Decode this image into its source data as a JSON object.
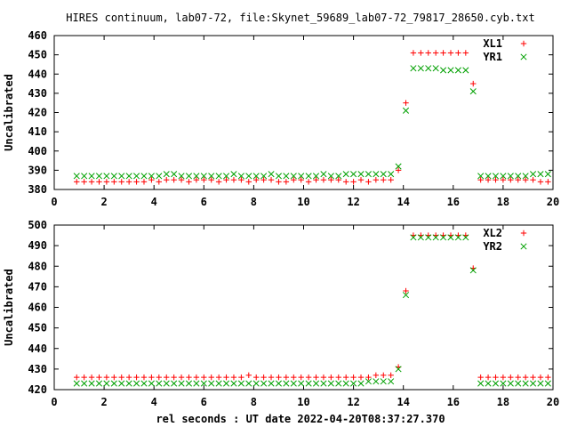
{
  "title": "HIRES continuum, lab07-72, file:Skynet_59689_lab07-72_79817_28650.cyb.txt",
  "xlabel": "rel seconds : UT date 2022-04-20T08:37:27.370",
  "colors": {
    "red": "#ff0000",
    "green": "#00a000",
    "frame": "#000000"
  },
  "chart_data": [
    {
      "type": "scatter",
      "ylabel": "Uncalibrated",
      "xlim": [
        0,
        20
      ],
      "ylim": [
        380,
        460
      ],
      "xticks": [
        "0",
        "2",
        "4",
        "6",
        "8",
        "10",
        "12",
        "14",
        "16",
        "18",
        "20"
      ],
      "yticks": [
        "380",
        "390",
        "400",
        "410",
        "420",
        "430",
        "440",
        "450",
        "460"
      ],
      "legend_position": "top-right",
      "x": [
        0.9,
        1.2,
        1.5,
        1.8,
        2.1,
        2.4,
        2.7,
        3.0,
        3.3,
        3.6,
        3.9,
        4.2,
        4.5,
        4.8,
        5.1,
        5.4,
        5.7,
        6.0,
        6.3,
        6.6,
        6.9,
        7.2,
        7.5,
        7.8,
        8.1,
        8.4,
        8.7,
        9.0,
        9.3,
        9.6,
        9.9,
        10.2,
        10.5,
        10.8,
        11.1,
        11.4,
        11.7,
        12.0,
        12.3,
        12.6,
        12.9,
        13.2,
        13.5,
        13.8,
        14.1,
        14.4,
        14.7,
        15.0,
        15.3,
        15.6,
        15.9,
        16.2,
        16.5,
        16.8,
        17.1,
        17.4,
        17.7,
        18.0,
        18.3,
        18.6,
        18.9,
        19.2,
        19.5,
        19.8
      ],
      "series": [
        {
          "name": "XL1",
          "marker": "plus",
          "color": "#ff0000",
          "values": [
            384,
            384,
            384,
            384,
            384,
            384,
            384,
            384,
            384,
            384,
            385,
            384,
            385,
            385,
            385,
            384,
            385,
            385,
            385,
            384,
            385,
            385,
            385,
            384,
            385,
            385,
            385,
            384,
            384,
            385,
            385,
            384,
            385,
            385,
            385,
            385,
            384,
            384,
            385,
            384,
            385,
            385,
            385,
            390,
            425,
            451,
            451,
            451,
            451,
            451,
            451,
            451,
            451,
            435,
            385,
            385,
            385,
            385,
            385,
            385,
            385,
            385,
            384,
            384
          ]
        },
        {
          "name": "YR1",
          "marker": "cross",
          "color": "#00a000",
          "values": [
            387,
            387,
            387,
            387,
            387,
            387,
            387,
            387,
            387,
            387,
            387,
            387,
            388,
            388,
            387,
            387,
            387,
            387,
            387,
            387,
            387,
            388,
            387,
            387,
            387,
            387,
            388,
            387,
            387,
            387,
            387,
            387,
            387,
            388,
            387,
            387,
            388,
            388,
            388,
            388,
            388,
            388,
            388,
            392,
            421,
            443,
            443,
            443,
            443,
            442,
            442,
            442,
            442,
            431,
            387,
            387,
            387,
            387,
            387,
            387,
            387,
            388,
            388,
            388
          ]
        }
      ]
    },
    {
      "type": "scatter",
      "ylabel": "Uncalibrated",
      "xlim": [
        0,
        20
      ],
      "ylim": [
        420,
        500
      ],
      "xticks": [
        "0",
        "2",
        "4",
        "6",
        "8",
        "10",
        "12",
        "14",
        "16",
        "18",
        "20"
      ],
      "yticks": [
        "420",
        "430",
        "440",
        "450",
        "460",
        "470",
        "480",
        "490",
        "500"
      ],
      "legend_position": "top-right",
      "x": [
        0.9,
        1.2,
        1.5,
        1.8,
        2.1,
        2.4,
        2.7,
        3.0,
        3.3,
        3.6,
        3.9,
        4.2,
        4.5,
        4.8,
        5.1,
        5.4,
        5.7,
        6.0,
        6.3,
        6.6,
        6.9,
        7.2,
        7.5,
        7.8,
        8.1,
        8.4,
        8.7,
        9.0,
        9.3,
        9.6,
        9.9,
        10.2,
        10.5,
        10.8,
        11.1,
        11.4,
        11.7,
        12.0,
        12.3,
        12.6,
        12.9,
        13.2,
        13.5,
        13.8,
        14.1,
        14.4,
        14.7,
        15.0,
        15.3,
        15.6,
        15.9,
        16.2,
        16.5,
        16.8,
        17.1,
        17.4,
        17.7,
        18.0,
        18.3,
        18.6,
        18.9,
        19.2,
        19.5,
        19.8
      ],
      "series": [
        {
          "name": "XL2",
          "marker": "plus",
          "color": "#ff0000",
          "values": [
            426,
            426,
            426,
            426,
            426,
            426,
            426,
            426,
            426,
            426,
            426,
            426,
            426,
            426,
            426,
            426,
            426,
            426,
            426,
            426,
            426,
            426,
            426,
            427,
            426,
            426,
            426,
            426,
            426,
            426,
            426,
            426,
            426,
            426,
            426,
            426,
            426,
            426,
            426,
            426,
            427,
            427,
            427,
            431,
            468,
            495,
            495,
            495,
            495,
            495,
            495,
            495,
            495,
            479,
            426,
            426,
            426,
            426,
            426,
            426,
            426,
            426,
            426,
            426
          ]
        },
        {
          "name": "YR2",
          "marker": "cross",
          "color": "#00a000",
          "values": [
            423,
            423,
            423,
            423,
            423,
            423,
            423,
            423,
            423,
            423,
            423,
            423,
            423,
            423,
            423,
            423,
            423,
            423,
            423,
            423,
            423,
            423,
            423,
            423,
            423,
            423,
            423,
            423,
            423,
            423,
            423,
            423,
            423,
            423,
            423,
            423,
            423,
            423,
            423,
            424,
            424,
            424,
            424,
            430,
            466,
            494,
            494,
            494,
            494,
            494,
            494,
            494,
            494,
            478,
            423,
            423,
            423,
            423,
            423,
            423,
            423,
            423,
            423,
            423
          ]
        }
      ]
    }
  ]
}
